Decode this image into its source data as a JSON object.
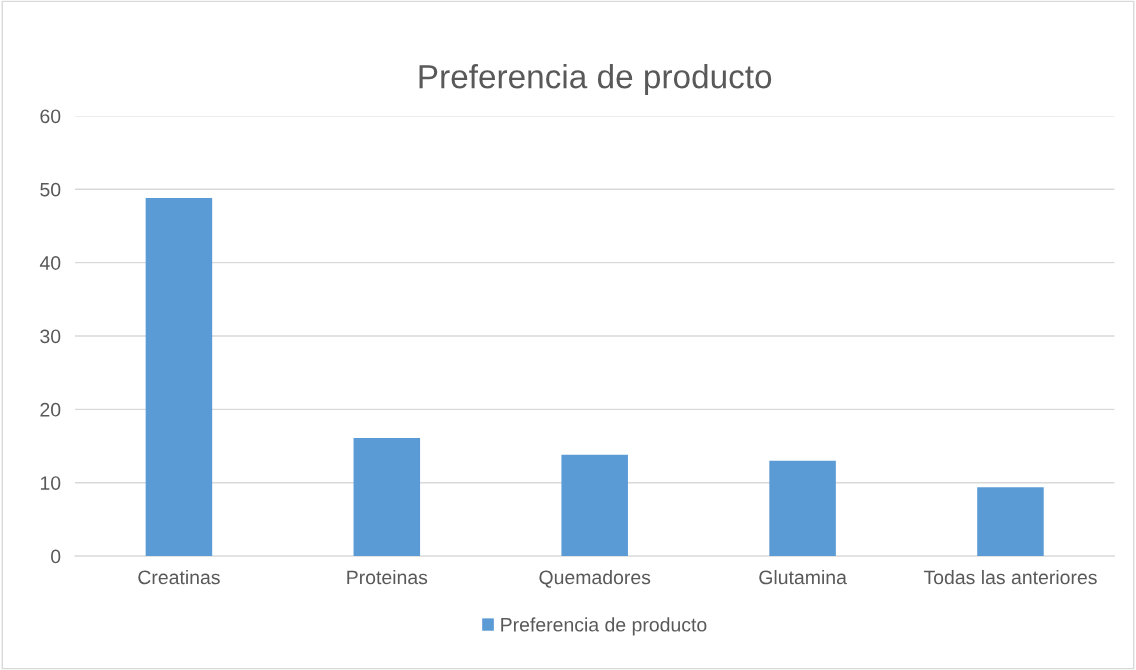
{
  "chart_data": {
    "type": "bar",
    "title": "Preferencia de producto",
    "categories": [
      "Creatinas",
      "Proteinas",
      "Quemadores",
      "Glutamina",
      "Todas las anteriores"
    ],
    "series": [
      {
        "name": "Preferencia de producto",
        "color": "#5b9bd5",
        "values": [
          48.8,
          16.1,
          13.8,
          13.0,
          9.4
        ]
      }
    ],
    "ylim": [
      0,
      60
    ],
    "yticks": [
      0,
      10,
      20,
      30,
      40,
      50,
      60
    ],
    "grid": "y",
    "legend": "bottom"
  }
}
